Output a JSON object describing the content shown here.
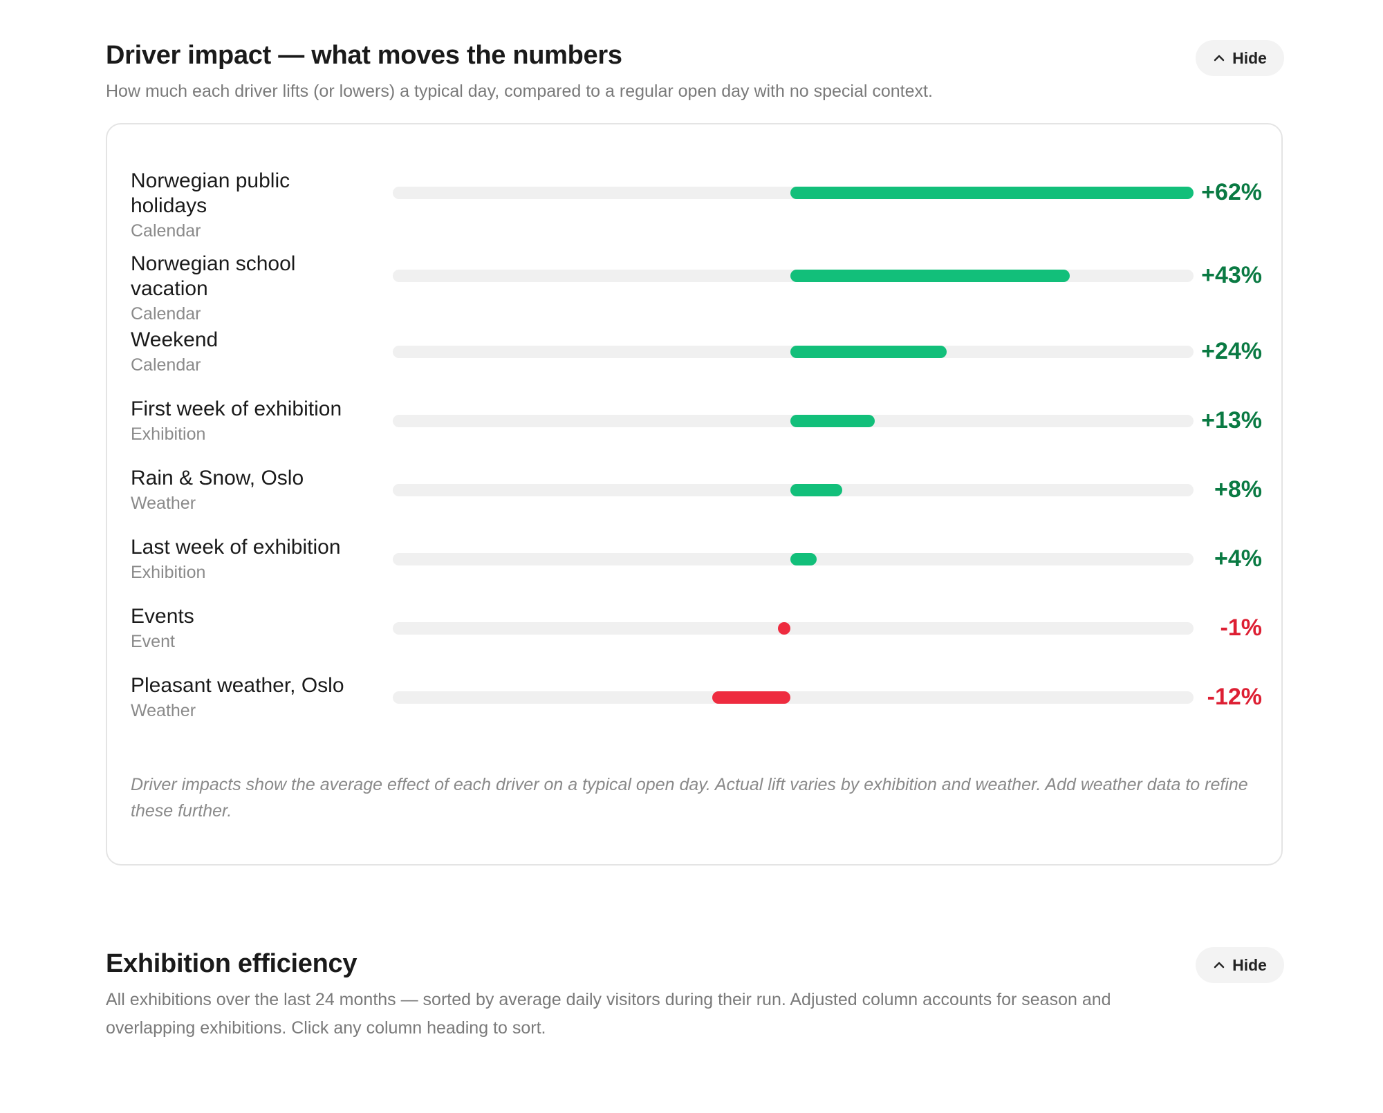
{
  "driver_impact": {
    "title": "Driver impact — what moves the numbers",
    "description": "How much each driver lifts (or lowers) a typical day, compared to a regular open day with no special context.",
    "hide_label": "Hide",
    "colors": {
      "positive_bar": "#12bf7a",
      "positive_text": "#0a7a43",
      "negative_bar": "#ee2b3f",
      "negative_text": "#dd1f33",
      "track": "#f0f0f0"
    },
    "chart_data": {
      "type": "bar",
      "orientation": "horizontal-diverging",
      "xlim": [
        -62,
        62
      ],
      "drivers": [
        {
          "name": "Norwegian public holidays",
          "category": "Calendar",
          "value": 62,
          "label": "+62%"
        },
        {
          "name": "Norwegian school vacation",
          "category": "Calendar",
          "value": 43,
          "label": "+43%"
        },
        {
          "name": "Weekend",
          "category": "Calendar",
          "value": 24,
          "label": "+24%"
        },
        {
          "name": "First week of exhibition",
          "category": "Exhibition",
          "value": 13,
          "label": "+13%"
        },
        {
          "name": "Rain & Snow, Oslo",
          "category": "Weather",
          "value": 8,
          "label": "+8%"
        },
        {
          "name": "Last week of exhibition",
          "category": "Exhibition",
          "value": 4,
          "label": "+4%"
        },
        {
          "name": "Events",
          "category": "Event",
          "value": -1,
          "label": "-1%"
        },
        {
          "name": "Pleasant weather, Oslo",
          "category": "Weather",
          "value": -12,
          "label": "-12%"
        }
      ]
    },
    "footnote": "Driver impacts show the average effect of each driver on a typical open day. Actual lift varies by exhibition and weather. Add weather data to refine these further."
  },
  "exhibition_efficiency": {
    "title": "Exhibition efficiency",
    "description": "All exhibitions over the last 24 months — sorted by average daily visitors during their run. Adjusted column accounts for season and overlapping exhibitions. Click any column heading to sort.",
    "hide_label": "Hide"
  }
}
